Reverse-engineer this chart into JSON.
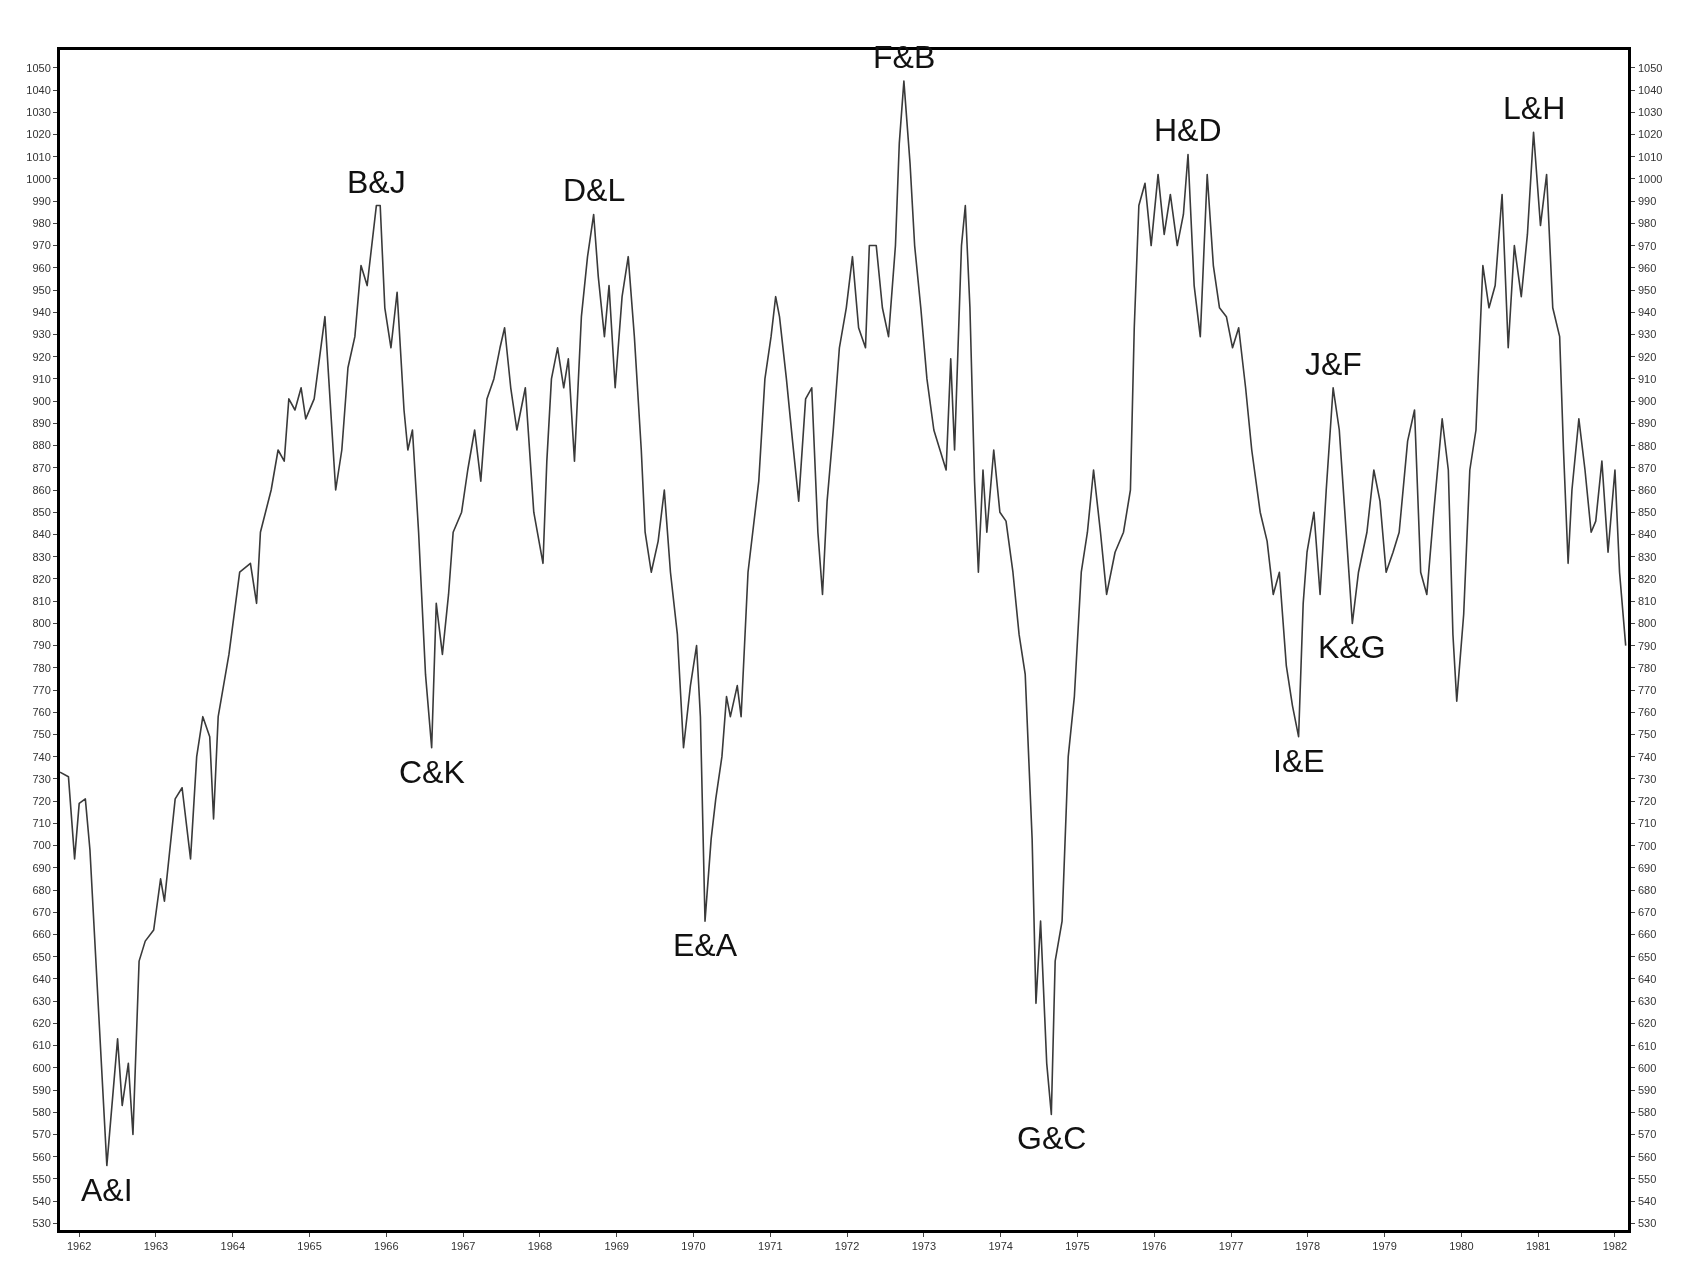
{
  "chart_data": {
    "type": "line",
    "xlim": [
      1961.75,
      1982.17
    ],
    "ylim": [
      527,
      1058
    ],
    "y2lim": [
      527,
      1058
    ],
    "xticks": [
      1962,
      1963,
      1964,
      1965,
      1966,
      1967,
      1968,
      1969,
      1970,
      1971,
      1972,
      1973,
      1974,
      1975,
      1976,
      1977,
      1978,
      1979,
      1980,
      1981,
      1982
    ],
    "yticks": [
      530,
      540,
      550,
      560,
      570,
      580,
      590,
      600,
      610,
      620,
      630,
      640,
      650,
      660,
      670,
      680,
      690,
      700,
      710,
      720,
      730,
      740,
      750,
      760,
      770,
      780,
      790,
      800,
      810,
      820,
      830,
      840,
      850,
      860,
      870,
      880,
      890,
      900,
      910,
      920,
      930,
      940,
      950,
      960,
      970,
      980,
      990,
      1000,
      1010,
      1020,
      1030,
      1040,
      1050
    ],
    "y2ticks": [
      530,
      540,
      550,
      560,
      570,
      580,
      590,
      600,
      610,
      620,
      630,
      640,
      650,
      660,
      670,
      680,
      690,
      700,
      710,
      720,
      730,
      740,
      750,
      760,
      770,
      780,
      790,
      800,
      810,
      820,
      830,
      840,
      850,
      860,
      870,
      880,
      890,
      900,
      910,
      920,
      930,
      940,
      950,
      960,
      970,
      980,
      990,
      1000,
      1010,
      1020,
      1030,
      1040,
      1050
    ],
    "grid": false,
    "marker": "none",
    "line_style": "solid",
    "x": [
      1961.75,
      1961.86,
      1961.94,
      1962.0,
      1962.08,
      1962.14,
      1962.36,
      1962.5,
      1962.56,
      1962.64,
      1962.7,
      1962.78,
      1962.86,
      1962.97,
      1963.06,
      1963.11,
      1963.25,
      1963.34,
      1963.45,
      1963.53,
      1963.61,
      1963.7,
      1963.75,
      1963.81,
      1963.95,
      1964.09,
      1964.23,
      1964.31,
      1964.36,
      1964.5,
      1964.59,
      1964.67,
      1964.73,
      1964.81,
      1964.89,
      1964.95,
      1965.06,
      1965.2,
      1965.25,
      1965.34,
      1965.42,
      1965.5,
      1965.59,
      1965.67,
      1965.75,
      1965.87,
      1965.92,
      1965.98,
      1966.06,
      1966.14,
      1966.23,
      1966.28,
      1966.34,
      1966.42,
      1966.51,
      1966.59,
      1966.65,
      1966.73,
      1966.81,
      1966.87,
      1966.98,
      1967.06,
      1967.15,
      1967.23,
      1967.31,
      1967.4,
      1967.48,
      1967.54,
      1967.62,
      1967.7,
      1967.81,
      1967.92,
      1968.04,
      1968.09,
      1968.15,
      1968.23,
      1968.31,
      1968.37,
      1968.45,
      1968.54,
      1968.62,
      1968.7,
      1968.76,
      1968.84,
      1968.9,
      1968.98,
      1969.07,
      1969.15,
      1969.23,
      1969.32,
      1969.37,
      1969.45,
      1969.54,
      1969.62,
      1969.7,
      1969.79,
      1969.87,
      1969.96,
      1970.04,
      1970.09,
      1970.15,
      1970.23,
      1970.29,
      1970.37,
      1970.43,
      1970.48,
      1970.57,
      1970.62,
      1970.71,
      1970.85,
      1970.93,
      1971.01,
      1971.07,
      1971.12,
      1971.21,
      1971.29,
      1971.37,
      1971.46,
      1971.54,
      1971.62,
      1971.68,
      1971.74,
      1971.82,
      1971.9,
      1971.99,
      1972.07,
      1972.15,
      1972.24,
      1972.29,
      1972.38,
      1972.46,
      1972.54,
      1972.63,
      1972.68,
      1972.74,
      1972.82,
      1972.88,
      1972.96,
      1973.04,
      1973.13,
      1973.21,
      1973.29,
      1973.35,
      1973.4,
      1973.49,
      1973.54,
      1973.6,
      1973.66,
      1973.71,
      1973.77,
      1973.82,
      1973.91,
      1973.99,
      1974.07,
      1974.16,
      1974.24,
      1974.32,
      1974.41,
      1974.46,
      1974.52,
      1974.6,
      1974.66,
      1974.71,
      1974.8,
      1974.88,
      1974.96,
      1975.05,
      1975.13,
      1975.21,
      1975.3,
      1975.38,
      1975.49,
      1975.6,
      1975.69,
      1975.74,
      1975.8,
      1975.88,
      1975.96,
      1976.05,
      1976.13,
      1976.21,
      1976.3,
      1976.38,
      1976.44,
      1976.52,
      1976.6,
      1976.69,
      1976.77,
      1976.85,
      1976.94,
      1977.02,
      1977.1,
      1977.19,
      1977.27,
      1977.38,
      1977.47,
      1977.55,
      1977.63,
      1977.72,
      1977.8,
      1977.88,
      1977.94,
      1977.99,
      1978.08,
      1978.16,
      1978.24,
      1978.33,
      1978.41,
      1978.5,
      1978.58,
      1978.66,
      1978.77,
      1978.86,
      1978.94,
      1979.02,
      1979.11,
      1979.19,
      1979.3,
      1979.39,
      1979.47,
      1979.55,
      1979.64,
      1979.75,
      1979.83,
      1979.89,
      1979.94,
      1980.03,
      1980.11,
      1980.19,
      1980.28,
      1980.36,
      1980.44,
      1980.53,
      1980.61,
      1980.69,
      1980.78,
      1980.86,
      1980.94,
      1981.03,
      1981.11,
      1981.19,
      1981.28,
      1981.33,
      1981.39,
      1981.44,
      1981.53,
      1981.61,
      1981.69,
      1981.75,
      1981.83,
      1981.91,
      1982.0,
      1982.06,
      1982.14
    ],
    "series": [
      {
        "color": "#3a3a3a",
        "values": [
          733,
          731,
          694,
          719,
          721,
          698,
          556,
          613,
          583,
          602,
          570,
          648,
          657,
          662,
          685,
          675,
          721,
          726,
          694,
          740,
          758,
          749,
          712,
          758,
          786,
          823,
          827,
          809,
          841,
          860,
          878,
          873,
          901,
          896,
          906,
          892,
          901,
          938,
          910,
          860,
          878,
          915,
          929,
          961,
          952,
          988,
          988,
          942,
          924,
          949,
          896,
          878,
          887,
          841,
          777,
          744,
          809,
          786,
          813,
          841,
          850,
          869,
          887,
          864,
          901,
          910,
          924,
          933,
          906,
          887,
          906,
          850,
          827,
          873,
          910,
          924,
          906,
          919,
          873,
          938,
          965,
          984,
          956,
          929,
          952,
          906,
          947,
          965,
          929,
          878,
          841,
          823,
          837,
          860,
          823,
          795,
          744,
          772,
          790,
          758,
          666,
          703,
          721,
          740,
          767,
          758,
          772,
          758,
          823,
          864,
          910,
          929,
          947,
          938,
          910,
          882,
          855,
          901,
          906,
          841,
          813,
          855,
          887,
          924,
          942,
          965,
          933,
          924,
          970,
          970,
          942,
          929,
          970,
          1016,
          1044,
          1007,
          970,
          942,
          910,
          887,
          878,
          869,
          919,
          878,
          970,
          988,
          942,
          864,
          823,
          869,
          841,
          878,
          850,
          846,
          823,
          795,
          777,
          703,
          629,
          666,
          602,
          579,
          648,
          666,
          740,
          767,
          823,
          841,
          869,
          841,
          813,
          832,
          841,
          860,
          933,
          988,
          998,
          970,
          1002,
          975,
          993,
          970,
          984,
          1011,
          952,
          929,
          1002,
          961,
          942,
          938,
          924,
          933,
          906,
          878,
          850,
          837,
          813,
          823,
          781,
          763,
          749,
          809,
          832,
          850,
          813,
          860,
          906,
          887,
          841,
          800,
          823,
          841,
          869,
          855,
          823,
          832,
          841,
          882,
          896,
          823,
          813,
          850,
          892,
          869,
          795,
          765,
          804,
          869,
          887,
          961,
          942,
          952,
          993,
          924,
          970,
          947,
          975,
          1021,
          979,
          1002,
          942,
          929,
          878,
          827,
          860,
          892,
          869,
          841,
          846,
          873,
          832,
          869,
          823,
          790
        ]
      }
    ],
    "annotations": [
      {
        "text": "A&I",
        "x": 1962.36,
        "y": 556
      },
      {
        "text": "B&J",
        "x": 1965.87,
        "y": 988
      },
      {
        "text": "C&K",
        "x": 1966.59,
        "y": 744
      },
      {
        "text": "D&L",
        "x": 1968.7,
        "y": 984
      },
      {
        "text": "E&A",
        "x": 1970.15,
        "y": 666
      },
      {
        "text": "F&B",
        "x": 1972.74,
        "y": 1044
      },
      {
        "text": "G&C",
        "x": 1974.66,
        "y": 579
      },
      {
        "text": "H&D",
        "x": 1976.44,
        "y": 1011
      },
      {
        "text": "I&E",
        "x": 1977.88,
        "y": 749
      },
      {
        "text": "J&F",
        "x": 1978.33,
        "y": 906
      },
      {
        "text": "K&G",
        "x": 1978.58,
        "y": 800
      },
      {
        "text": "L&H",
        "x": 1980.94,
        "y": 1021
      }
    ]
  }
}
